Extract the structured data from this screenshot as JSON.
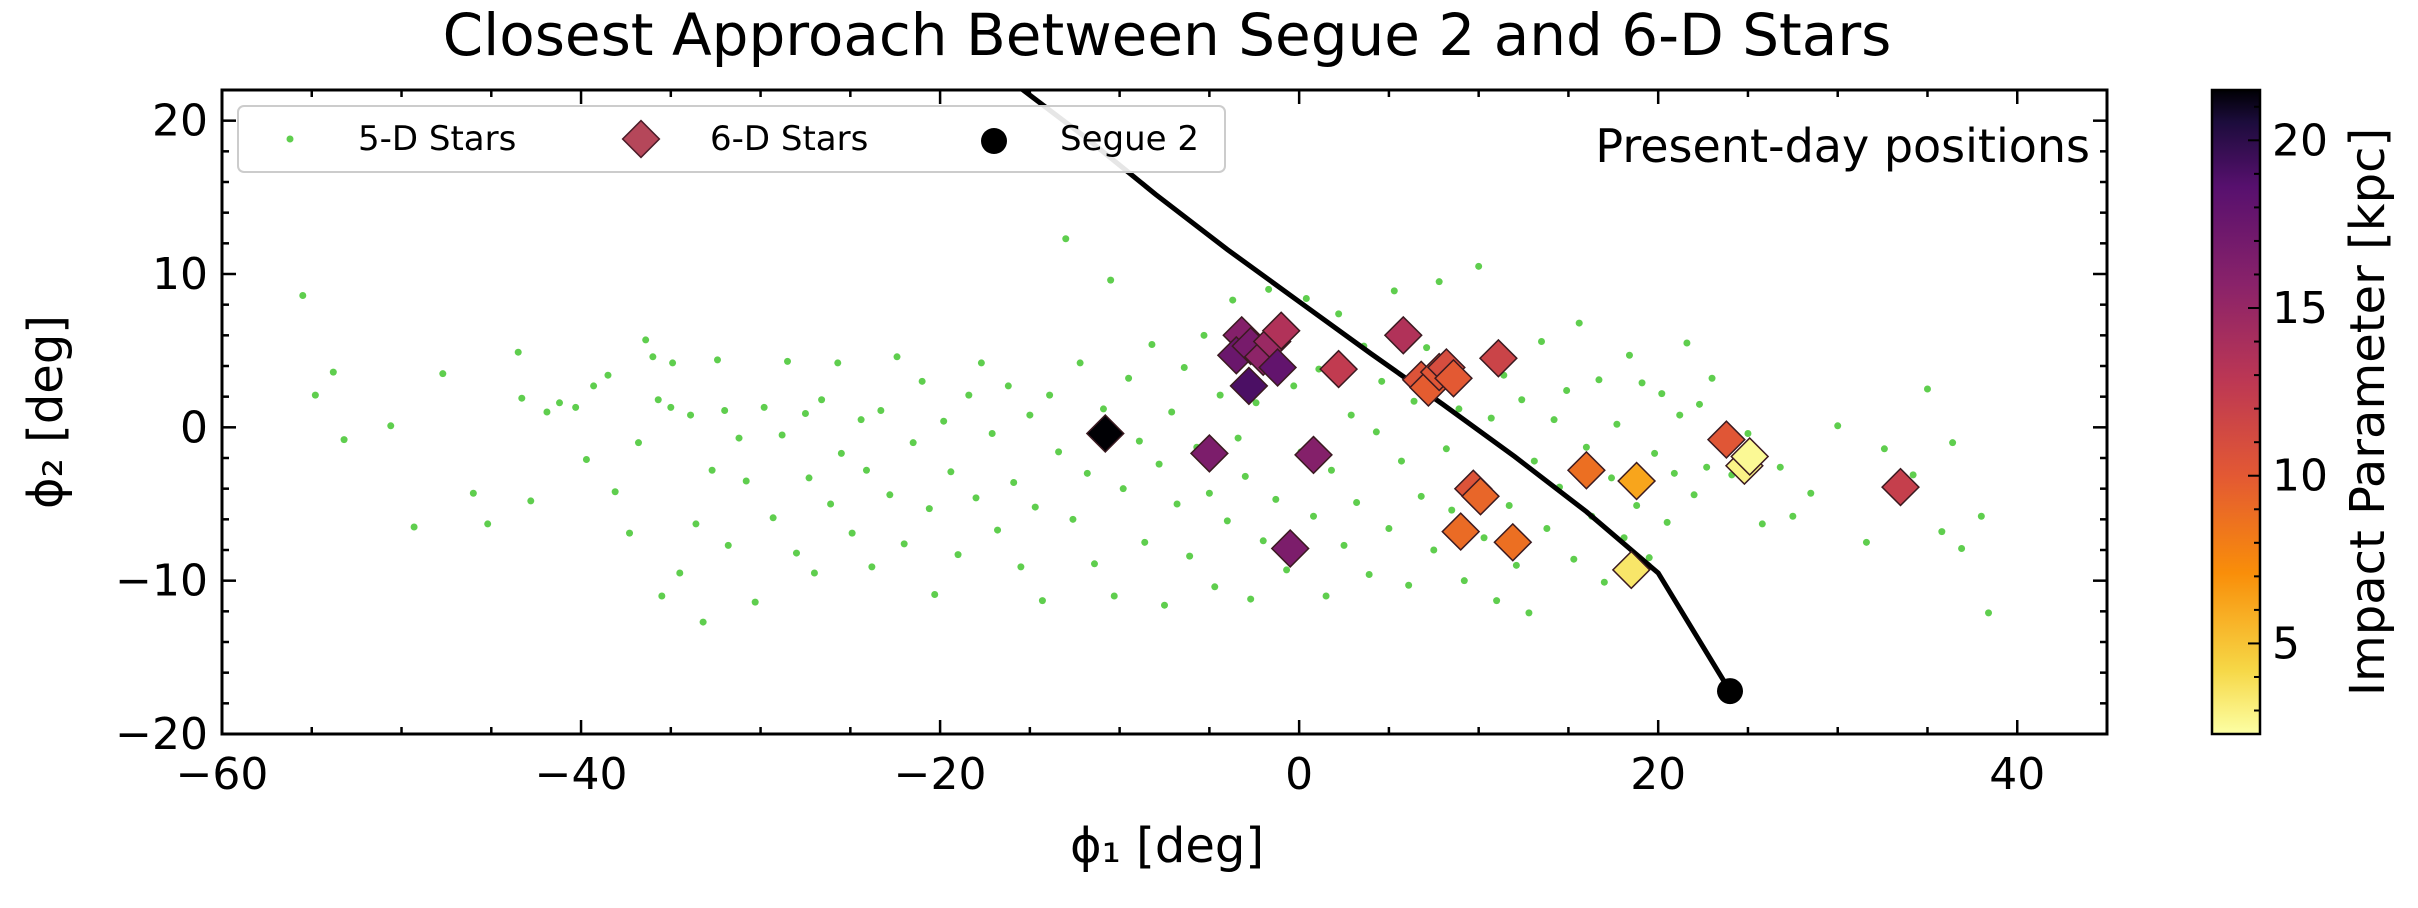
{
  "chart_data": {
    "type": "scatter",
    "title": "Closest Approach Between Segue 2 and 6-D Stars",
    "xlabel": "ϕ₁ [deg]",
    "ylabel": "ϕ₂ [deg]",
    "xlim": [
      -60,
      45
    ],
    "ylim": [
      -20,
      22
    ],
    "xticks": [
      -60,
      -40,
      -20,
      0,
      20,
      40
    ],
    "yticks": [
      -20,
      -10,
      0,
      10,
      20
    ],
    "annotation": "Present-day positions",
    "legend_placement": "top-left",
    "colorbar": {
      "label": "Impact Parameter [kpc]",
      "range": [
        2.3,
        21.5
      ],
      "ticks": [
        5,
        10,
        15,
        20
      ],
      "colormap": "inferno_r"
    },
    "series": [
      {
        "name": "5-D Stars",
        "marker": "dot",
        "color": "#5fce4e",
        "points": [
          [
            -55.5,
            8.6
          ],
          [
            -54.8,
            2.1
          ],
          [
            -53.8,
            3.6
          ],
          [
            -53.2,
            -0.8
          ],
          [
            -50.6,
            0.1
          ],
          [
            -49.3,
            -6.5
          ],
          [
            -47.7,
            3.5
          ],
          [
            -46.0,
            -4.3
          ],
          [
            -45.2,
            -6.3
          ],
          [
            -43.5,
            4.9
          ],
          [
            -43.3,
            1.9
          ],
          [
            -42.8,
            -4.8
          ],
          [
            -41.9,
            1.0
          ],
          [
            -41.2,
            1.6
          ],
          [
            -40.3,
            1.3
          ],
          [
            -39.7,
            -2.1
          ],
          [
            -39.3,
            2.7
          ],
          [
            -38.5,
            3.4
          ],
          [
            -38.1,
            -4.2
          ],
          [
            -37.3,
            -6.9
          ],
          [
            -36.8,
            -1.0
          ],
          [
            -36.4,
            5.7
          ],
          [
            -36.0,
            4.6
          ],
          [
            -35.7,
            1.8
          ],
          [
            -35.5,
            -11.0
          ],
          [
            -35.0,
            1.3
          ],
          [
            -34.9,
            4.2
          ],
          [
            -34.5,
            -9.5
          ],
          [
            -33.9,
            0.8
          ],
          [
            -33.6,
            -6.3
          ],
          [
            -33.2,
            -12.7
          ],
          [
            -32.7,
            -2.8
          ],
          [
            -32.4,
            4.4
          ],
          [
            -32.0,
            1.1
          ],
          [
            -31.8,
            -7.7
          ],
          [
            -31.2,
            -0.7
          ],
          [
            -30.8,
            -3.5
          ],
          [
            -30.3,
            -11.4
          ],
          [
            -29.8,
            1.3
          ],
          [
            -29.3,
            -5.9
          ],
          [
            -28.8,
            -0.5
          ],
          [
            -28.5,
            4.3
          ],
          [
            -28.0,
            -8.2
          ],
          [
            -27.5,
            0.9
          ],
          [
            -27.3,
            -3.3
          ],
          [
            -27.0,
            -9.5
          ],
          [
            -26.6,
            1.8
          ],
          [
            -26.1,
            -5.0
          ],
          [
            -25.7,
            4.2
          ],
          [
            -25.5,
            -1.7
          ],
          [
            -24.9,
            -6.9
          ],
          [
            -24.4,
            0.5
          ],
          [
            -24.1,
            -2.8
          ],
          [
            -23.8,
            -9.1
          ],
          [
            -23.3,
            1.1
          ],
          [
            -22.8,
            -4.4
          ],
          [
            -22.4,
            4.6
          ],
          [
            -22.0,
            -7.6
          ],
          [
            -21.5,
            -1.0
          ],
          [
            -21.0,
            3.0
          ],
          [
            -20.6,
            -5.3
          ],
          [
            -20.3,
            -10.9
          ],
          [
            -19.8,
            0.4
          ],
          [
            -19.4,
            -2.9
          ],
          [
            -19.0,
            -8.3
          ],
          [
            -18.4,
            2.1
          ],
          [
            -18.0,
            -4.6
          ],
          [
            -17.7,
            4.2
          ],
          [
            -17.1,
            -0.4
          ],
          [
            -16.8,
            -6.7
          ],
          [
            -16.2,
            2.7
          ],
          [
            -15.9,
            -3.6
          ],
          [
            -15.5,
            -9.1
          ],
          [
            -15.0,
            0.8
          ],
          [
            -14.7,
            -5.2
          ],
          [
            -14.3,
            -11.3
          ],
          [
            -13.9,
            2.1
          ],
          [
            -13.4,
            -1.6
          ],
          [
            -13.0,
            12.3
          ],
          [
            -12.6,
            -6.0
          ],
          [
            -12.2,
            4.2
          ],
          [
            -11.8,
            -3.0
          ],
          [
            -11.4,
            -8.9
          ],
          [
            -10.9,
            1.2
          ],
          [
            -10.5,
            9.6
          ],
          [
            -10.3,
            -11.0
          ],
          [
            -9.8,
            -4.0
          ],
          [
            -9.5,
            3.2
          ],
          [
            -8.9,
            -0.9
          ],
          [
            -8.6,
            -7.5
          ],
          [
            -8.2,
            5.4
          ],
          [
            -7.8,
            -2.4
          ],
          [
            -7.5,
            -11.6
          ],
          [
            -7.1,
            1.0
          ],
          [
            -6.8,
            -5.0
          ],
          [
            -6.4,
            3.9
          ],
          [
            -6.1,
            -8.4
          ],
          [
            -5.7,
            -1.3
          ],
          [
            -5.3,
            6.0
          ],
          [
            -5.0,
            -4.3
          ],
          [
            -4.7,
            -10.4
          ],
          [
            -4.4,
            2.1
          ],
          [
            -4.0,
            -6.1
          ],
          [
            -3.7,
            8.3
          ],
          [
            -3.4,
            -0.7
          ],
          [
            -3.0,
            -3.2
          ],
          [
            -2.7,
            -11.2
          ],
          [
            -2.4,
            1.6
          ],
          [
            -2.0,
            -7.4
          ],
          [
            -1.7,
            9.0
          ],
          [
            -1.3,
            -4.7
          ],
          [
            -1.0,
            6.2
          ],
          [
            -0.7,
            -9.3
          ],
          [
            -0.3,
            2.7
          ],
          [
            0.1,
            -1.6
          ],
          [
            0.4,
            8.4
          ],
          [
            0.8,
            -5.8
          ],
          [
            1.1,
            3.8
          ],
          [
            1.5,
            -11.0
          ],
          [
            1.8,
            -2.8
          ],
          [
            2.2,
            7.4
          ],
          [
            2.5,
            -7.7
          ],
          [
            2.9,
            0.8
          ],
          [
            3.2,
            -4.9
          ],
          [
            3.6,
            5.3
          ],
          [
            3.9,
            -9.6
          ],
          [
            4.3,
            -0.3
          ],
          [
            4.6,
            3.0
          ],
          [
            5.0,
            -6.6
          ],
          [
            5.3,
            8.9
          ],
          [
            5.7,
            -2.2
          ],
          [
            6.1,
            -10.3
          ],
          [
            6.4,
            1.7
          ],
          [
            6.8,
            -4.5
          ],
          [
            7.1,
            5.2
          ],
          [
            7.5,
            -8.0
          ],
          [
            7.8,
            9.5
          ],
          [
            8.2,
            -1.4
          ],
          [
            8.5,
            -5.4
          ],
          [
            8.9,
            1.2
          ],
          [
            9.2,
            -10.0
          ],
          [
            9.6,
            -3.3
          ],
          [
            10.0,
            10.5
          ],
          [
            10.3,
            -7.2
          ],
          [
            10.7,
            0.6
          ],
          [
            11.0,
            -11.3
          ],
          [
            11.4,
            3.4
          ],
          [
            11.7,
            -5.1
          ],
          [
            12.1,
            -9.0
          ],
          [
            12.4,
            1.8
          ],
          [
            12.8,
            -12.1
          ],
          [
            13.1,
            -2.2
          ],
          [
            13.5,
            5.6
          ],
          [
            13.8,
            -6.6
          ],
          [
            14.2,
            0.5
          ],
          [
            14.5,
            -3.9
          ],
          [
            14.9,
            2.4
          ],
          [
            15.3,
            -8.6
          ],
          [
            15.6,
            6.8
          ],
          [
            16.0,
            -1.3
          ],
          [
            16.3,
            -5.8
          ],
          [
            16.7,
            3.1
          ],
          [
            17.0,
            -10.1
          ],
          [
            17.4,
            -3.3
          ],
          [
            17.7,
            0.2
          ],
          [
            18.1,
            -7.2
          ],
          [
            18.4,
            4.7
          ],
          [
            18.8,
            -5.1
          ],
          [
            19.1,
            2.9
          ],
          [
            19.5,
            -8.5
          ],
          [
            19.8,
            -1.7
          ],
          [
            20.2,
            2.2
          ],
          [
            20.5,
            -6.2
          ],
          [
            20.9,
            -3.0
          ],
          [
            21.2,
            0.8
          ],
          [
            21.6,
            5.5
          ],
          [
            22.0,
            -4.4
          ],
          [
            22.3,
            1.5
          ],
          [
            22.7,
            -2.6
          ],
          [
            23.0,
            3.2
          ],
          [
            23.4,
            -1.0
          ],
          [
            24.1,
            -3.1
          ],
          [
            25.0,
            -0.4
          ],
          [
            25.8,
            -6.3
          ],
          [
            26.8,
            -2.6
          ],
          [
            27.5,
            -5.8
          ],
          [
            28.5,
            -4.3
          ],
          [
            30.0,
            0.1
          ],
          [
            31.6,
            -7.5
          ],
          [
            32.6,
            -1.4
          ],
          [
            34.2,
            -3.1
          ],
          [
            35.0,
            2.5
          ],
          [
            35.8,
            -6.8
          ],
          [
            36.4,
            -1.0
          ],
          [
            36.9,
            -7.9
          ],
          [
            38.0,
            -5.8
          ],
          [
            38.4,
            -12.1
          ]
        ]
      },
      {
        "name": "6-D Stars",
        "marker": "diamond",
        "color": "#b5475a",
        "points": [
          [
            -10.8,
            -0.4,
            21.5
          ],
          [
            -5.0,
            -1.7,
            16.5
          ],
          [
            -3.2,
            6.0,
            16.0
          ],
          [
            -3.5,
            4.7,
            17.5
          ],
          [
            -2.8,
            2.7,
            19.0
          ],
          [
            -2.7,
            5.3,
            16.8
          ],
          [
            -2.0,
            4.6,
            15.5
          ],
          [
            -1.5,
            5.6,
            14.8
          ],
          [
            -1.2,
            3.9,
            18.0
          ],
          [
            -1.0,
            6.3,
            13.5
          ],
          [
            -0.5,
            -7.9,
            16.5
          ],
          [
            0.8,
            -1.8,
            16.0
          ],
          [
            2.2,
            3.8,
            12.5
          ],
          [
            5.8,
            6.0,
            13.5
          ],
          [
            6.8,
            3.1,
            10.5
          ],
          [
            7.2,
            2.6,
            9.8
          ],
          [
            7.8,
            3.6,
            10.2
          ],
          [
            8.2,
            3.9,
            11.0
          ],
          [
            8.6,
            3.2,
            10.0
          ],
          [
            9.0,
            -6.8,
            9.0
          ],
          [
            9.7,
            -4.0,
            10.5
          ],
          [
            10.1,
            -4.5,
            9.3
          ],
          [
            11.1,
            4.5,
            11.8
          ],
          [
            11.9,
            -7.5,
            8.8
          ],
          [
            16.0,
            -2.8,
            8.8
          ],
          [
            18.5,
            -9.3,
            3.5
          ],
          [
            18.8,
            -3.5,
            6.2
          ],
          [
            23.8,
            -0.8,
            10.2
          ],
          [
            24.8,
            -2.5,
            2.9
          ],
          [
            25.1,
            -1.9,
            2.6
          ],
          [
            33.5,
            -3.9,
            12.2
          ]
        ]
      },
      {
        "name": "Segue 2",
        "marker": "circle",
        "color": "#000000",
        "points": [
          [
            24.0,
            -17.2
          ]
        ],
        "orbit": [
          [
            -16.5,
            23.0
          ],
          [
            -12.0,
            19.0
          ],
          [
            -8.0,
            15.2
          ],
          [
            -4.0,
            11.6
          ],
          [
            0.0,
            8.2
          ],
          [
            4.0,
            4.8
          ],
          [
            8.0,
            1.5
          ],
          [
            12.0,
            -1.9
          ],
          [
            16.0,
            -5.5
          ],
          [
            20.0,
            -9.5
          ],
          [
            24.0,
            -17.2
          ]
        ]
      }
    ]
  }
}
